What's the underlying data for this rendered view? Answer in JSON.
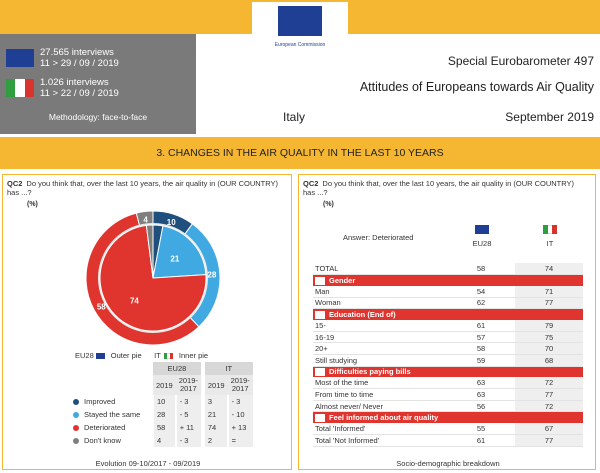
{
  "header": {
    "logo_caption": "European Commission",
    "interviews": [
      {
        "count": "27.565 interviews",
        "dates": "11 > 29 / 09 / 2019"
      },
      {
        "count": "1.026 interviews",
        "dates": "11 > 22 / 09 / 2019"
      }
    ],
    "methodology": "Methodology: face-to-face",
    "survey": "Special Eurobarometer 497",
    "title": "Attitudes of Europeans towards Air Quality",
    "country": "Italy",
    "date": "September 2019"
  },
  "section_title": "3. CHANGES IN THE AIR QUALITY IN THE LAST 10 YEARS",
  "colors": {
    "improved": "#1f4f7c",
    "same": "#41a9e1",
    "deteriorated": "#e0342e",
    "dontknow": "#7f7f7f",
    "accent": "#f5b731",
    "eu_blue": "#1f3f94",
    "it_green": "#2e9e3e",
    "it_red": "#d8332c"
  },
  "left_panel": {
    "question_code": "QC2",
    "question": "Do you think that, over the last 10 years, the air quality in (OUR COUNTRY) has ...?",
    "unit": "(%)",
    "legend_outer": "EU28",
    "legend_outer_text": "Outer pie",
    "legend_inner": "IT",
    "legend_inner_text": "Inner pie",
    "table_head": {
      "eu": "EU28",
      "it": "IT",
      "c1": "2019",
      "c2": "2019-2017",
      "c3": "2019",
      "c4": "2019-2017"
    },
    "footer": "Evolution 09-10/2017 - 09/2019"
  },
  "chart_data": {
    "type": "pie",
    "categories": [
      "Improved",
      "Stayed the same",
      "Deteriorated",
      "Don't know"
    ],
    "series": [
      {
        "name": "EU28",
        "values": [
          10,
          28,
          58,
          4
        ],
        "change": [
          "- 3",
          "- 5",
          "+ 11",
          "- 3"
        ]
      },
      {
        "name": "IT",
        "values": [
          3,
          21,
          74,
          2
        ],
        "change": [
          "- 3",
          "- 10",
          "+ 13",
          "="
        ]
      }
    ]
  },
  "right_panel": {
    "question_code": "QC2",
    "question": "Do you think that, over the last 10 years, the air quality in (OUR COUNTRY) has ...?",
    "unit": "(%)",
    "answer_label": "Answer: Deteriorated",
    "col_eu": "EU28",
    "col_it": "IT",
    "rows": [
      {
        "type": "row",
        "label": "TOTAL",
        "eu": "58",
        "it": "74"
      },
      {
        "type": "cat",
        "label": "Gender"
      },
      {
        "type": "row",
        "label": "Man",
        "eu": "54",
        "it": "71"
      },
      {
        "type": "row",
        "label": "Woman",
        "eu": "62",
        "it": "77"
      },
      {
        "type": "cat",
        "label": "Education (End of)"
      },
      {
        "type": "row",
        "label": "15-",
        "eu": "61",
        "it": "79"
      },
      {
        "type": "row",
        "label": "16-19",
        "eu": "57",
        "it": "75"
      },
      {
        "type": "row",
        "label": "20+",
        "eu": "58",
        "it": "70"
      },
      {
        "type": "row",
        "label": "Still studying",
        "eu": "59",
        "it": "68"
      },
      {
        "type": "cat",
        "label": "Difficulties paying bills"
      },
      {
        "type": "row",
        "label": "Most of the time",
        "eu": "63",
        "it": "72"
      },
      {
        "type": "row",
        "label": "From time to time",
        "eu": "63",
        "it": "77"
      },
      {
        "type": "row",
        "label": "Almost never/ Never",
        "eu": "56",
        "it": "72"
      },
      {
        "type": "cat",
        "label": "Feel informed about air quality"
      },
      {
        "type": "row",
        "label": "Total 'Informed'",
        "eu": "55",
        "it": "67"
      },
      {
        "type": "row",
        "label": "Total 'Not Informed'",
        "eu": "61",
        "it": "77"
      }
    ],
    "footer": "Socio-demographic breakdown"
  }
}
